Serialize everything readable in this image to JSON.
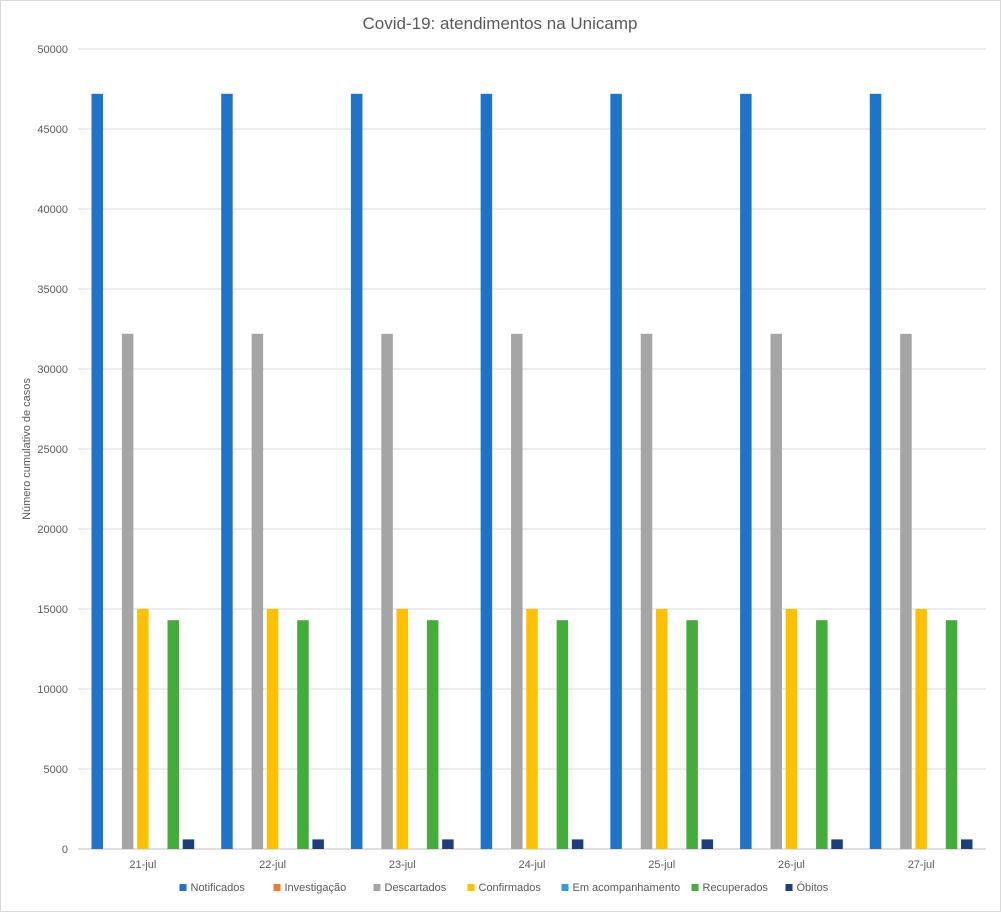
{
  "chart_data": {
    "type": "bar",
    "title": "Covid-19: atendimentos na Unicamp",
    "ylabel": "Número  cumulativo de casos",
    "xlabel": "",
    "ylim": [
      0,
      50000
    ],
    "yticks": [
      0,
      5000,
      10000,
      15000,
      20000,
      25000,
      30000,
      35000,
      40000,
      45000,
      50000
    ],
    "grid": true,
    "legend_position": "bottom",
    "categories": [
      "21-jul",
      "22-jul",
      "23-jul",
      "24-jul",
      "25-jul",
      "26-jul",
      "27-jul"
    ],
    "series": [
      {
        "name": "Notificados",
        "color": "#1f73c8",
        "values": [
          47200,
          47200,
          47200,
          47200,
          47200,
          47200,
          47200
        ]
      },
      {
        "name": "Investigação",
        "color": "#ed7d31",
        "values": [
          0,
          0,
          0,
          0,
          0,
          0,
          0
        ]
      },
      {
        "name": "Descartados",
        "color": "#a5a5a5",
        "values": [
          32200,
          32200,
          32200,
          32200,
          32200,
          32200,
          32200
        ]
      },
      {
        "name": "Confirmados",
        "color": "#ffc000",
        "values": [
          15000,
          15000,
          15000,
          15000,
          15000,
          15000,
          15000
        ]
      },
      {
        "name": "Em acompanhamento",
        "color": "#2e9fd8",
        "values": [
          0,
          0,
          0,
          0,
          0,
          0,
          0
        ]
      },
      {
        "name": "Recuperados",
        "color": "#43ac3a",
        "values": [
          14300,
          14300,
          14300,
          14300,
          14300,
          14300,
          14300
        ]
      },
      {
        "name": "Óbitos",
        "color": "#1a3f7a",
        "values": [
          600,
          600,
          600,
          600,
          600,
          600,
          600
        ]
      }
    ]
  }
}
